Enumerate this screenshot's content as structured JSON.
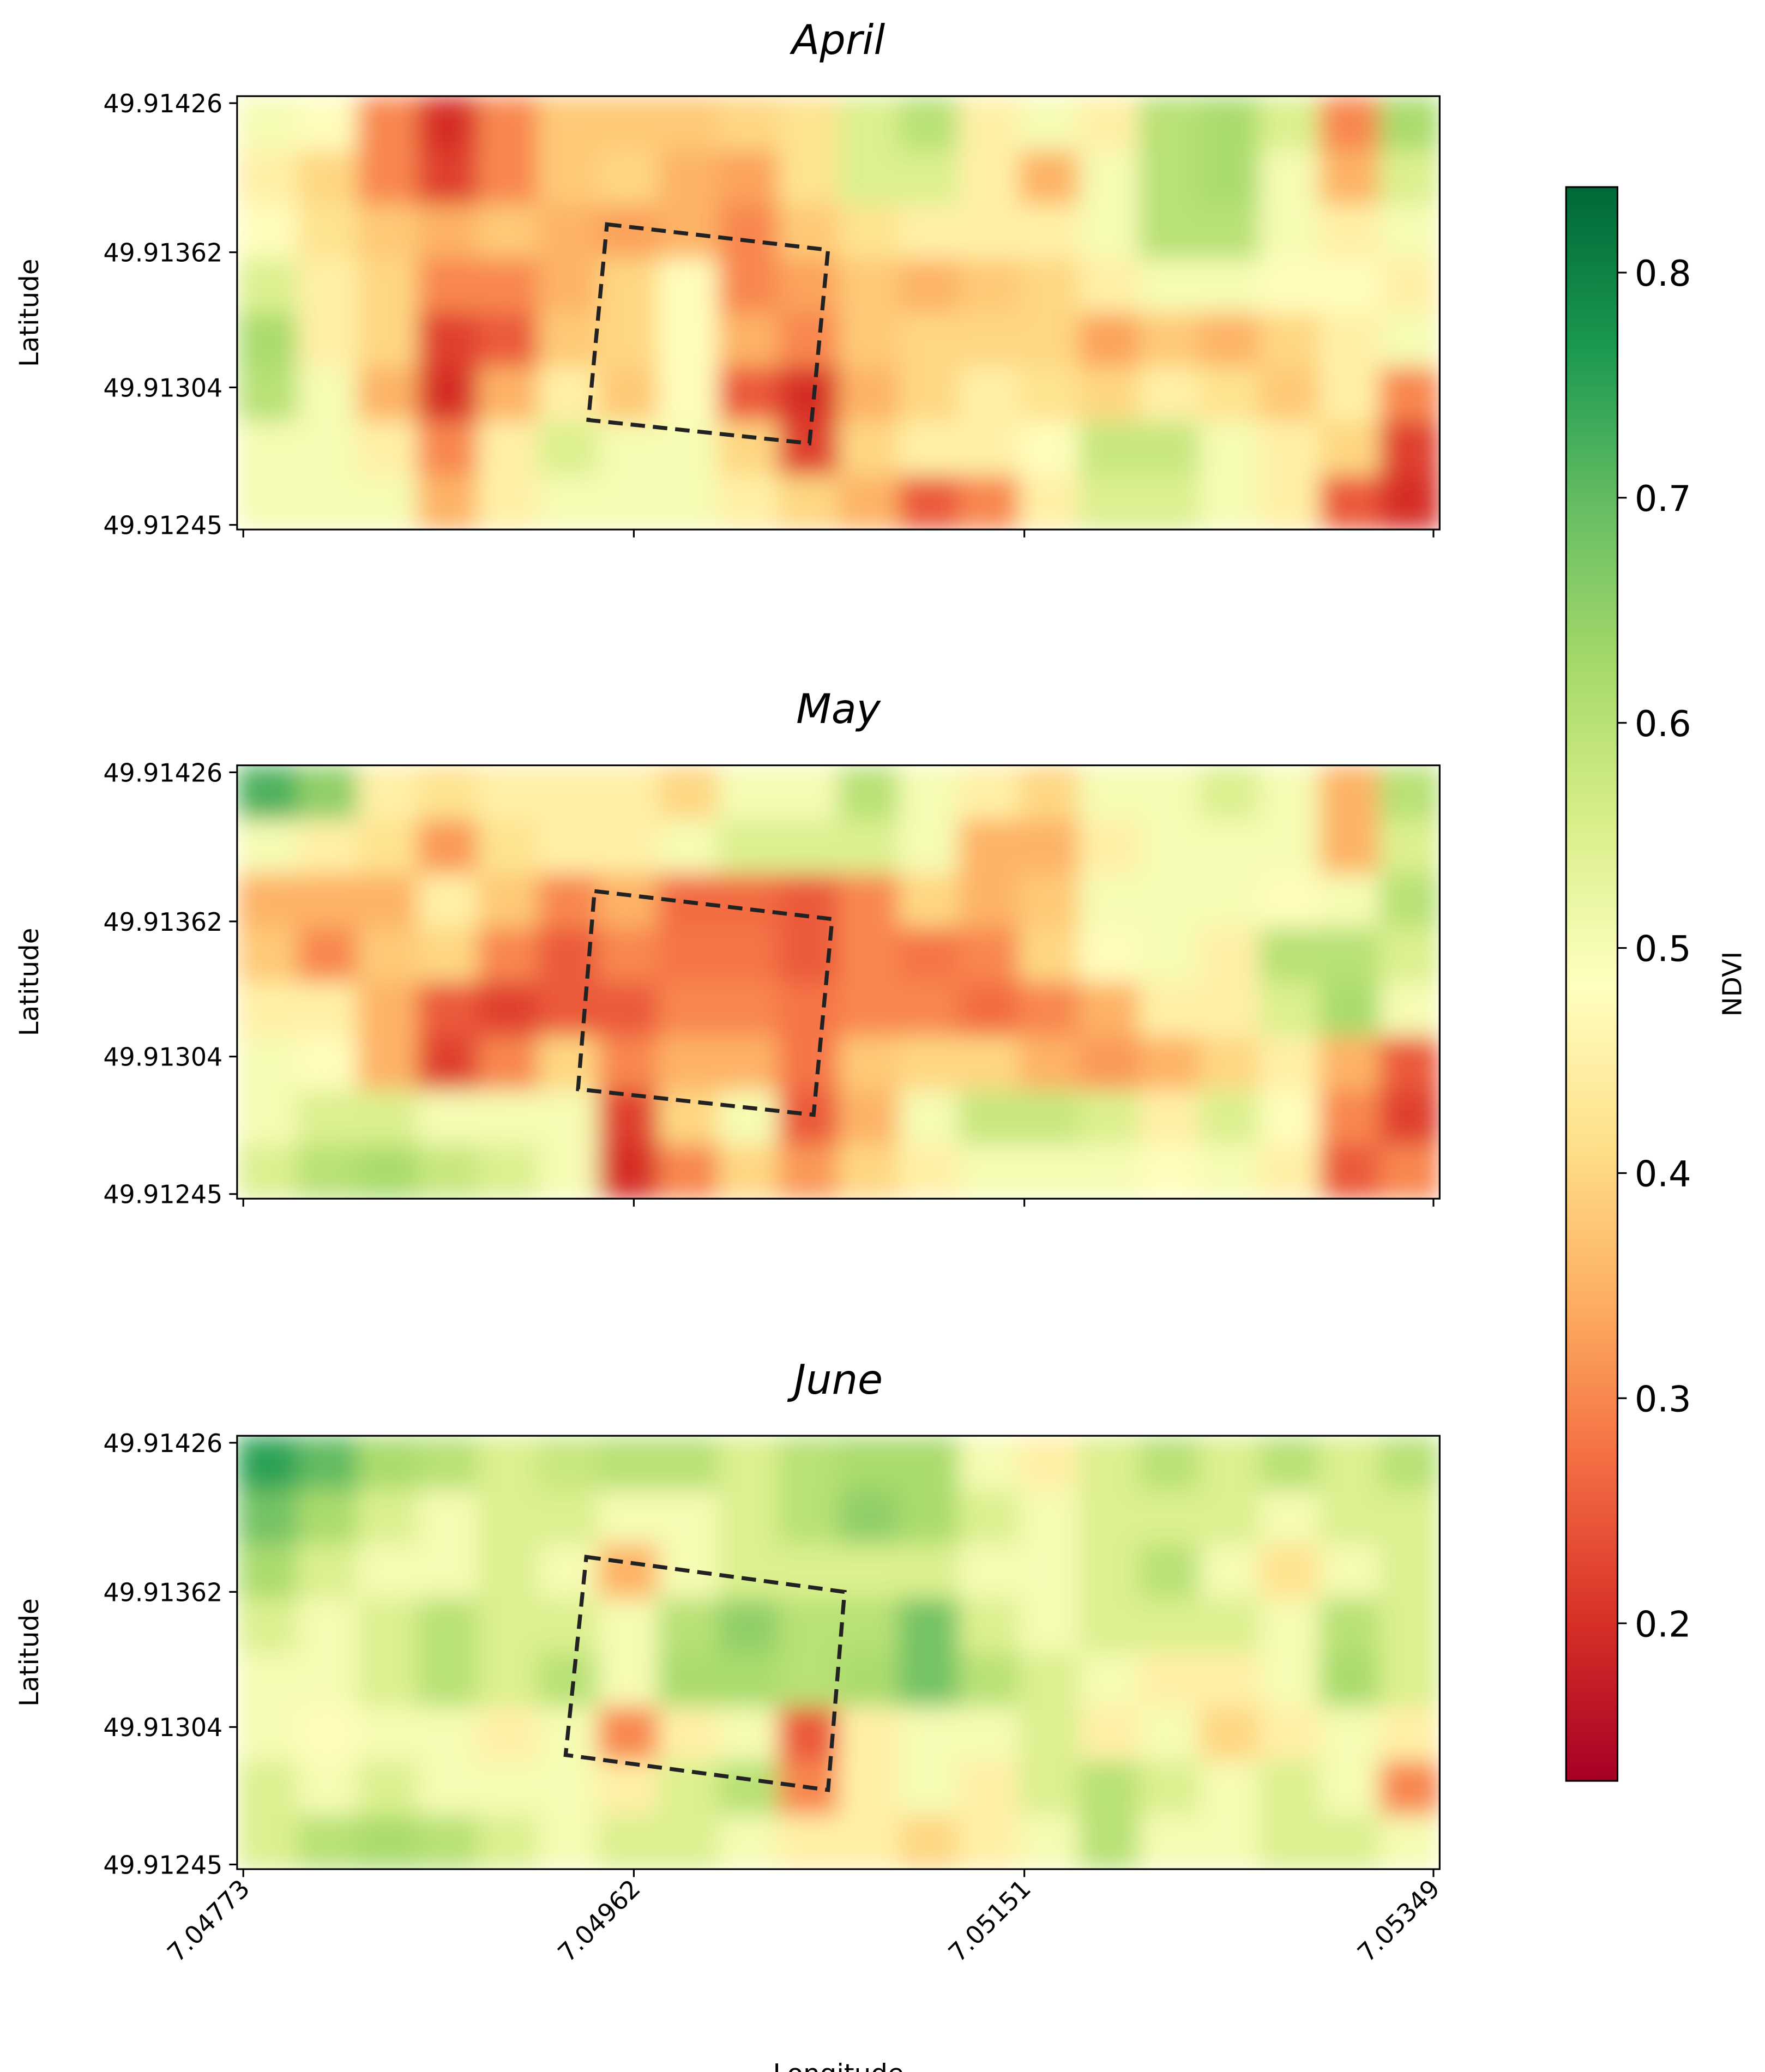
{
  "chart_data": [
    {
      "type": "heatmap",
      "title": "April",
      "ylabel": "Latitude",
      "colormap": "RdYlGn",
      "xlim": [
        7.0477,
        7.05352
      ],
      "ylim": [
        49.91243,
        49.91429
      ],
      "xticks": [
        7.04773,
        7.04962,
        7.05151,
        7.05349
      ],
      "yticks": [
        49.91426,
        49.91362,
        49.91304,
        49.91245
      ],
      "region": {
        "x": [
          7.04949,
          7.05056,
          7.05047,
          7.0494
        ],
        "y": [
          49.91374,
          49.91363,
          49.9128,
          49.9129
        ]
      },
      "z": [
        [
          0.5,
          0.48,
          0.3,
          0.2,
          0.3,
          0.38,
          0.38,
          0.38,
          0.4,
          0.42,
          0.55,
          0.6,
          0.45,
          0.5,
          0.45,
          0.6,
          0.62,
          0.55,
          0.3,
          0.62
        ],
        [
          0.45,
          0.4,
          0.3,
          0.22,
          0.3,
          0.38,
          0.4,
          0.35,
          0.33,
          0.42,
          0.55,
          0.55,
          0.45,
          0.35,
          0.5,
          0.6,
          0.62,
          0.5,
          0.35,
          0.55
        ],
        [
          0.48,
          0.42,
          0.38,
          0.35,
          0.38,
          0.35,
          0.33,
          0.35,
          0.3,
          0.38,
          0.42,
          0.45,
          0.45,
          0.45,
          0.5,
          0.6,
          0.6,
          0.5,
          0.45,
          0.5
        ],
        [
          0.55,
          0.45,
          0.4,
          0.3,
          0.3,
          0.35,
          0.4,
          0.48,
          0.3,
          0.33,
          0.38,
          0.35,
          0.38,
          0.4,
          0.45,
          0.5,
          0.5,
          0.48,
          0.48,
          0.45
        ],
        [
          0.62,
          0.45,
          0.4,
          0.22,
          0.25,
          0.38,
          0.4,
          0.48,
          0.35,
          0.3,
          0.38,
          0.4,
          0.4,
          0.4,
          0.33,
          0.38,
          0.35,
          0.4,
          0.45,
          0.5
        ],
        [
          0.6,
          0.5,
          0.35,
          0.2,
          0.35,
          0.45,
          0.38,
          0.48,
          0.25,
          0.2,
          0.35,
          0.4,
          0.45,
          0.42,
          0.4,
          0.45,
          0.42,
          0.38,
          0.45,
          0.3
        ],
        [
          0.5,
          0.5,
          0.45,
          0.3,
          0.45,
          0.55,
          0.5,
          0.5,
          0.4,
          0.22,
          0.4,
          0.45,
          0.45,
          0.48,
          0.58,
          0.58,
          0.5,
          0.45,
          0.4,
          0.22
        ],
        [
          0.5,
          0.5,
          0.5,
          0.35,
          0.45,
          0.5,
          0.5,
          0.5,
          0.45,
          0.4,
          0.35,
          0.25,
          0.3,
          0.45,
          0.55,
          0.55,
          0.5,
          0.45,
          0.25,
          0.2
        ]
      ]
    },
    {
      "type": "heatmap",
      "title": "May",
      "ylabel": "Latitude",
      "colormap": "RdYlGn",
      "xlim": [
        7.0477,
        7.05352
      ],
      "ylim": [
        49.91243,
        49.91429
      ],
      "xticks": [
        7.04773,
        7.04962,
        7.05151,
        7.05349
      ],
      "yticks": [
        49.91426,
        49.91362,
        49.91304,
        49.91245
      ],
      "region": {
        "x": [
          7.04943,
          7.05058,
          7.05049,
          7.04935
        ],
        "y": [
          49.91375,
          49.91363,
          49.91279,
          49.9129
        ]
      },
      "z": [
        [
          0.72,
          0.65,
          0.45,
          0.42,
          0.45,
          0.45,
          0.45,
          0.4,
          0.5,
          0.5,
          0.6,
          0.5,
          0.45,
          0.4,
          0.5,
          0.5,
          0.55,
          0.5,
          0.35,
          0.6
        ],
        [
          0.5,
          0.45,
          0.42,
          0.32,
          0.42,
          0.45,
          0.45,
          0.5,
          0.55,
          0.55,
          0.55,
          0.5,
          0.35,
          0.35,
          0.45,
          0.5,
          0.5,
          0.5,
          0.35,
          0.55
        ],
        [
          0.35,
          0.35,
          0.35,
          0.45,
          0.38,
          0.3,
          0.35,
          0.27,
          0.27,
          0.25,
          0.3,
          0.4,
          0.35,
          0.38,
          0.5,
          0.5,
          0.5,
          0.48,
          0.5,
          0.6
        ],
        [
          0.38,
          0.3,
          0.38,
          0.4,
          0.3,
          0.25,
          0.3,
          0.28,
          0.28,
          0.25,
          0.3,
          0.28,
          0.3,
          0.4,
          0.48,
          0.5,
          0.45,
          0.6,
          0.6,
          0.55
        ],
        [
          0.45,
          0.45,
          0.35,
          0.25,
          0.22,
          0.25,
          0.25,
          0.3,
          0.3,
          0.28,
          0.3,
          0.3,
          0.27,
          0.3,
          0.35,
          0.45,
          0.45,
          0.55,
          0.62,
          0.5
        ],
        [
          0.5,
          0.48,
          0.35,
          0.22,
          0.3,
          0.4,
          0.3,
          0.35,
          0.35,
          0.28,
          0.38,
          0.4,
          0.4,
          0.35,
          0.32,
          0.35,
          0.4,
          0.45,
          0.35,
          0.25
        ],
        [
          0.5,
          0.55,
          0.55,
          0.5,
          0.5,
          0.5,
          0.22,
          0.4,
          0.5,
          0.25,
          0.35,
          0.5,
          0.58,
          0.58,
          0.55,
          0.45,
          0.55,
          0.48,
          0.3,
          0.22
        ],
        [
          0.55,
          0.6,
          0.62,
          0.58,
          0.55,
          0.5,
          0.2,
          0.3,
          0.4,
          0.32,
          0.4,
          0.45,
          0.5,
          0.5,
          0.5,
          0.48,
          0.5,
          0.45,
          0.25,
          0.3
        ]
      ]
    },
    {
      "type": "heatmap",
      "title": "June",
      "ylabel": "Latitude",
      "xlabel": "Longitude",
      "colormap": "RdYlGn",
      "xlim": [
        7.0477,
        7.05352
      ],
      "ylim": [
        49.91243,
        49.91429
      ],
      "xticks": [
        7.04773,
        7.04962,
        7.05151,
        7.05349
      ],
      "yticks": [
        49.91426,
        49.91362,
        49.91304,
        49.91245
      ],
      "region": {
        "x": [
          7.04939,
          7.05064,
          7.05056,
          7.04929
        ],
        "y": [
          49.91377,
          49.91362,
          49.91277,
          49.91292
        ]
      },
      "z": [
        [
          0.75,
          0.7,
          0.62,
          0.6,
          0.55,
          0.58,
          0.6,
          0.6,
          0.55,
          0.6,
          0.62,
          0.62,
          0.5,
          0.45,
          0.55,
          0.6,
          0.55,
          0.6,
          0.55,
          0.6
        ],
        [
          0.68,
          0.62,
          0.55,
          0.5,
          0.55,
          0.55,
          0.5,
          0.5,
          0.55,
          0.6,
          0.65,
          0.62,
          0.55,
          0.5,
          0.55,
          0.55,
          0.55,
          0.5,
          0.55,
          0.55
        ],
        [
          0.62,
          0.55,
          0.5,
          0.5,
          0.55,
          0.5,
          0.35,
          0.5,
          0.55,
          0.55,
          0.55,
          0.55,
          0.5,
          0.5,
          0.55,
          0.6,
          0.5,
          0.42,
          0.5,
          0.55
        ],
        [
          0.55,
          0.5,
          0.55,
          0.6,
          0.55,
          0.55,
          0.5,
          0.6,
          0.65,
          0.6,
          0.6,
          0.68,
          0.55,
          0.5,
          0.55,
          0.55,
          0.55,
          0.5,
          0.6,
          0.55
        ],
        [
          0.5,
          0.5,
          0.55,
          0.6,
          0.55,
          0.6,
          0.5,
          0.62,
          0.62,
          0.6,
          0.62,
          0.68,
          0.6,
          0.55,
          0.5,
          0.45,
          0.45,
          0.5,
          0.62,
          0.55
        ],
        [
          0.5,
          0.48,
          0.5,
          0.5,
          0.45,
          0.5,
          0.3,
          0.45,
          0.5,
          0.25,
          0.45,
          0.5,
          0.5,
          0.55,
          0.45,
          0.5,
          0.4,
          0.45,
          0.5,
          0.45
        ],
        [
          0.55,
          0.5,
          0.55,
          0.5,
          0.5,
          0.5,
          0.45,
          0.55,
          0.6,
          0.3,
          0.45,
          0.5,
          0.45,
          0.55,
          0.6,
          0.55,
          0.5,
          0.55,
          0.5,
          0.3
        ],
        [
          0.55,
          0.6,
          0.62,
          0.6,
          0.55,
          0.5,
          0.55,
          0.55,
          0.5,
          0.45,
          0.45,
          0.4,
          0.45,
          0.5,
          0.6,
          0.5,
          0.5,
          0.55,
          0.55,
          0.5
        ]
      ]
    }
  ],
  "colorbar": {
    "label": "NDVI",
    "lim": [
      0.13,
      0.838
    ],
    "ticks": [
      0.2,
      0.3,
      0.4,
      0.5,
      0.6,
      0.7,
      0.8
    ]
  }
}
